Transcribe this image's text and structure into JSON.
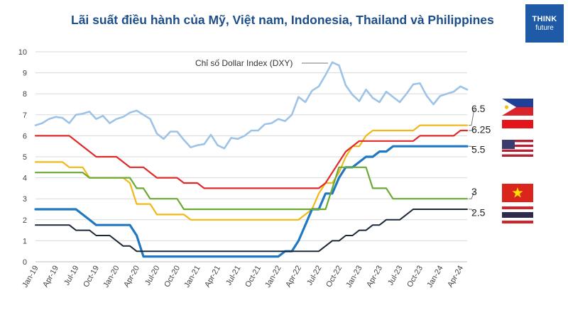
{
  "header": {
    "title": "Lãi suất điều hành của Mỹ, Việt nam, Indonesia, Thailand và Philippines",
    "logo_line1": "THINK",
    "logo_line2": "future"
  },
  "colors": {
    "dxy": "#9dc3e6",
    "philippines": "#f2b817",
    "indonesia": "#e02a2a",
    "usa": "#1f78c1",
    "vietnam": "#6aaa33",
    "thailand": "#1b2838"
  },
  "chart_data": {
    "type": "line",
    "title": "Lãi suất điều hành của Mỹ, Việt nam, Indonesia, Thailand và Philippines",
    "ylim": [
      0,
      10
    ],
    "yticks": [
      "0",
      "1",
      "2",
      "3",
      "4",
      "5",
      "6",
      "7",
      "8",
      "9",
      "10"
    ],
    "x_labels": [
      "Jan-19",
      "Apr-19",
      "Jul-19",
      "Oct-19",
      "Jan-20",
      "Apr-20",
      "Jul-20",
      "Oct-20",
      "Jan-21",
      "Apr-21",
      "Jul-21",
      "Oct-21",
      "Jan-22",
      "Apr-22",
      "Jul-22",
      "Oct-22",
      "Jan-23",
      "Apr-23",
      "Jul-23",
      "Oct-23",
      "Jan-24",
      "Apr-24"
    ],
    "grid": "horizontal",
    "annotation": "Chỉ số Dollar Index (DXY)",
    "end_labels": [
      {
        "text": "6.5",
        "y": 7.3
      },
      {
        "text": "6.25",
        "y": 6.3
      },
      {
        "text": "5.5",
        "y": 5.35
      },
      {
        "text": "3",
        "y": 3.35
      },
      {
        "text": "2.5",
        "y": 2.35
      }
    ],
    "series": [
      {
        "key": "dxy",
        "values": [
          6.5,
          6.6,
          6.8,
          6.9,
          6.85,
          6.6,
          7.0,
          7.05,
          7.15,
          6.8,
          6.95,
          6.6,
          6.8,
          6.9,
          7.1,
          7.2,
          7.0,
          6.8,
          6.1,
          5.85,
          6.2,
          6.2,
          5.8,
          5.45,
          5.55,
          5.6,
          6.05,
          5.55,
          5.4,
          5.9,
          5.85,
          6.0,
          6.25,
          6.25,
          6.55,
          6.6,
          6.8,
          6.7,
          7.0,
          7.85,
          7.6,
          8.15,
          8.35,
          8.9,
          9.5,
          9.35,
          8.4,
          7.95,
          7.65,
          8.2,
          7.8,
          7.6,
          8.1,
          7.85,
          7.6,
          8.0,
          8.45,
          8.5,
          7.9,
          7.5,
          7.9,
          8.0,
          8.1,
          8.35,
          8.2
        ]
      },
      {
        "key": "philippines",
        "values": [
          4.75,
          4.75,
          4.75,
          4.75,
          4.75,
          4.5,
          4.5,
          4.5,
          4.0,
          4.0,
          4.0,
          4.0,
          4.0,
          4.0,
          3.75,
          2.75,
          2.75,
          2.75,
          2.25,
          2.25,
          2.25,
          2.25,
          2.25,
          2.0,
          2.0,
          2.0,
          2.0,
          2.0,
          2.0,
          2.0,
          2.0,
          2.0,
          2.0,
          2.0,
          2.0,
          2.0,
          2.0,
          2.0,
          2.0,
          2.0,
          2.25,
          2.5,
          3.25,
          3.75,
          3.75,
          4.25,
          5.0,
          5.5,
          5.5,
          6.0,
          6.25,
          6.25,
          6.25,
          6.25,
          6.25,
          6.25,
          6.25,
          6.5,
          6.5,
          6.5,
          6.5,
          6.5,
          6.5,
          6.5,
          6.5
        ]
      },
      {
        "key": "indonesia",
        "values": [
          6.0,
          6.0,
          6.0,
          6.0,
          6.0,
          6.0,
          5.75,
          5.5,
          5.25,
          5.0,
          5.0,
          5.0,
          5.0,
          4.75,
          4.5,
          4.5,
          4.5,
          4.25,
          4.0,
          4.0,
          4.0,
          4.0,
          3.75,
          3.75,
          3.75,
          3.5,
          3.5,
          3.5,
          3.5,
          3.5,
          3.5,
          3.5,
          3.5,
          3.5,
          3.5,
          3.5,
          3.5,
          3.5,
          3.5,
          3.5,
          3.5,
          3.5,
          3.5,
          3.75,
          4.25,
          4.75,
          5.25,
          5.5,
          5.75,
          5.75,
          5.75,
          5.75,
          5.75,
          5.75,
          5.75,
          5.75,
          5.75,
          6.0,
          6.0,
          6.0,
          6.0,
          6.0,
          6.0,
          6.25,
          6.25
        ]
      },
      {
        "key": "usa",
        "values": [
          2.5,
          2.5,
          2.5,
          2.5,
          2.5,
          2.5,
          2.5,
          2.25,
          2.0,
          1.75,
          1.75,
          1.75,
          1.75,
          1.75,
          1.75,
          1.25,
          0.25,
          0.25,
          0.25,
          0.25,
          0.25,
          0.25,
          0.25,
          0.25,
          0.25,
          0.25,
          0.25,
          0.25,
          0.25,
          0.25,
          0.25,
          0.25,
          0.25,
          0.25,
          0.25,
          0.25,
          0.25,
          0.5,
          0.5,
          1.0,
          1.75,
          2.5,
          2.5,
          3.25,
          3.25,
          4.0,
          4.5,
          4.5,
          4.75,
          5.0,
          5.0,
          5.25,
          5.25,
          5.5,
          5.5,
          5.5,
          5.5,
          5.5,
          5.5,
          5.5,
          5.5,
          5.5,
          5.5,
          5.5,
          5.5
        ]
      },
      {
        "key": "vietnam",
        "values": [
          4.25,
          4.25,
          4.25,
          4.25,
          4.25,
          4.25,
          4.25,
          4.25,
          4.0,
          4.0,
          4.0,
          4.0,
          4.0,
          4.0,
          4.0,
          3.5,
          3.5,
          3.0,
          3.0,
          3.0,
          3.0,
          3.0,
          2.5,
          2.5,
          2.5,
          2.5,
          2.5,
          2.5,
          2.5,
          2.5,
          2.5,
          2.5,
          2.5,
          2.5,
          2.5,
          2.5,
          2.5,
          2.5,
          2.5,
          2.5,
          2.5,
          2.5,
          2.5,
          2.5,
          3.5,
          4.5,
          4.5,
          4.5,
          4.5,
          4.5,
          3.5,
          3.5,
          3.5,
          3.0,
          3.0,
          3.0,
          3.0,
          3.0,
          3.0,
          3.0,
          3.0,
          3.0,
          3.0,
          3.0,
          3.0
        ]
      },
      {
        "key": "thailand",
        "values": [
          1.75,
          1.75,
          1.75,
          1.75,
          1.75,
          1.75,
          1.5,
          1.5,
          1.5,
          1.25,
          1.25,
          1.25,
          1.0,
          0.75,
          0.75,
          0.5,
          0.5,
          0.5,
          0.5,
          0.5,
          0.5,
          0.5,
          0.5,
          0.5,
          0.5,
          0.5,
          0.5,
          0.5,
          0.5,
          0.5,
          0.5,
          0.5,
          0.5,
          0.5,
          0.5,
          0.5,
          0.5,
          0.5,
          0.5,
          0.5,
          0.5,
          0.5,
          0.5,
          0.75,
          1.0,
          1.0,
          1.25,
          1.25,
          1.5,
          1.5,
          1.75,
          1.75,
          2.0,
          2.0,
          2.0,
          2.25,
          2.5,
          2.5,
          2.5,
          2.5,
          2.5,
          2.5,
          2.5,
          2.5,
          2.5
        ]
      }
    ]
  },
  "flags": [
    {
      "country": "philippines",
      "icon": "philippines-flag-icon"
    },
    {
      "country": "indonesia",
      "icon": "indonesia-flag-icon"
    },
    {
      "country": "usa",
      "icon": "usa-flag-icon"
    },
    {
      "country": "vietnam",
      "icon": "vietnam-flag-icon"
    },
    {
      "country": "thailand",
      "icon": "thailand-flag-icon"
    }
  ]
}
